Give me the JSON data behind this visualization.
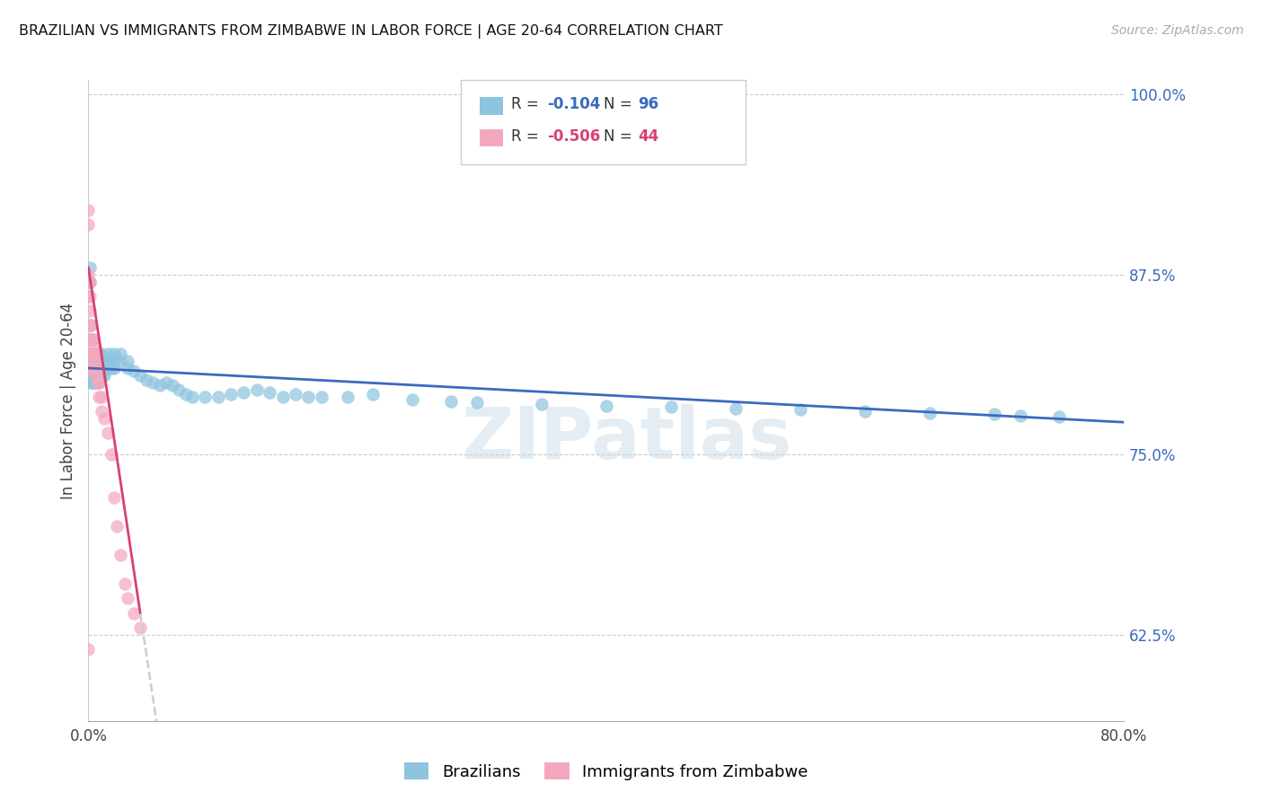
{
  "title": "BRAZILIAN VS IMMIGRANTS FROM ZIMBABWE IN LABOR FORCE | AGE 20-64 CORRELATION CHART",
  "source": "Source: ZipAtlas.com",
  "ylabel": "In Labor Force | Age 20-64",
  "xlim": [
    0.0,
    0.8
  ],
  "ylim": [
    0.565,
    1.01
  ],
  "yticks": [
    0.625,
    0.75,
    0.875,
    1.0
  ],
  "ytick_labels": [
    "62.5%",
    "75.0%",
    "87.5%",
    "100.0%"
  ],
  "xticks": [
    0.0,
    0.1,
    0.2,
    0.3,
    0.4,
    0.5,
    0.6,
    0.7,
    0.8
  ],
  "xtick_labels": [
    "0.0%",
    "",
    "",
    "",
    "",
    "",
    "",
    "",
    "80.0%"
  ],
  "brazil_R": -0.104,
  "brazil_N": 96,
  "zimb_R": -0.506,
  "zimb_N": 44,
  "legend_label_brazil": "Brazilians",
  "legend_label_zimb": "Immigrants from Zimbabwe",
  "blue_color": "#8ec4de",
  "pink_color": "#f4a8be",
  "line_blue": "#3a6abf",
  "line_pink": "#d94070",
  "watermark": "ZIPatlas",
  "brazil_x": [
    0.001,
    0.001,
    0.001,
    0.001,
    0.001,
    0.002,
    0.002,
    0.002,
    0.002,
    0.003,
    0.003,
    0.003,
    0.003,
    0.003,
    0.004,
    0.004,
    0.004,
    0.004,
    0.005,
    0.005,
    0.005,
    0.005,
    0.005,
    0.006,
    0.006,
    0.006,
    0.007,
    0.007,
    0.007,
    0.007,
    0.008,
    0.008,
    0.008,
    0.008,
    0.009,
    0.009,
    0.009,
    0.01,
    0.01,
    0.01,
    0.01,
    0.012,
    0.012,
    0.012,
    0.014,
    0.014,
    0.016,
    0.016,
    0.016,
    0.018,
    0.018,
    0.02,
    0.02,
    0.02,
    0.025,
    0.025,
    0.03,
    0.03,
    0.035,
    0.04,
    0.045,
    0.05,
    0.055,
    0.06,
    0.065,
    0.07,
    0.075,
    0.08,
    0.09,
    0.1,
    0.11,
    0.12,
    0.13,
    0.14,
    0.15,
    0.16,
    0.17,
    0.18,
    0.2,
    0.22,
    0.25,
    0.28,
    0.3,
    0.35,
    0.4,
    0.45,
    0.5,
    0.55,
    0.6,
    0.65,
    0.7,
    0.72,
    0.75
  ],
  "brazil_y": [
    0.87,
    0.88,
    0.84,
    0.83,
    0.82,
    0.83,
    0.82,
    0.81,
    0.8,
    0.82,
    0.815,
    0.81,
    0.805,
    0.8,
    0.82,
    0.815,
    0.81,
    0.8,
    0.82,
    0.815,
    0.81,
    0.805,
    0.8,
    0.815,
    0.81,
    0.805,
    0.82,
    0.815,
    0.81,
    0.805,
    0.82,
    0.815,
    0.81,
    0.8,
    0.815,
    0.81,
    0.805,
    0.82,
    0.815,
    0.81,
    0.805,
    0.815,
    0.81,
    0.805,
    0.815,
    0.81,
    0.82,
    0.815,
    0.81,
    0.815,
    0.81,
    0.82,
    0.815,
    0.81,
    0.82,
    0.815,
    0.815,
    0.81,
    0.808,
    0.805,
    0.802,
    0.8,
    0.798,
    0.8,
    0.798,
    0.795,
    0.792,
    0.79,
    0.79,
    0.79,
    0.792,
    0.793,
    0.795,
    0.793,
    0.79,
    0.792,
    0.79,
    0.79,
    0.79,
    0.792,
    0.788,
    0.787,
    0.786,
    0.785,
    0.784,
    0.783,
    0.782,
    0.781,
    0.78,
    0.779,
    0.778,
    0.777,
    0.776
  ],
  "zimb_x": [
    0.0,
    0.0,
    0.0,
    0.0,
    0.0,
    0.0,
    0.001,
    0.001,
    0.001,
    0.001,
    0.001,
    0.001,
    0.002,
    0.002,
    0.002,
    0.002,
    0.003,
    0.003,
    0.003,
    0.004,
    0.004,
    0.004,
    0.005,
    0.005,
    0.005,
    0.006,
    0.006,
    0.007,
    0.007,
    0.008,
    0.008,
    0.01,
    0.01,
    0.012,
    0.015,
    0.018,
    0.02,
    0.022,
    0.025,
    0.028,
    0.03,
    0.035,
    0.04
  ],
  "zimb_y": [
    0.92,
    0.91,
    0.875,
    0.87,
    0.86,
    0.615,
    0.87,
    0.86,
    0.85,
    0.84,
    0.82,
    0.81,
    0.84,
    0.83,
    0.82,
    0.81,
    0.83,
    0.82,
    0.81,
    0.83,
    0.82,
    0.81,
    0.825,
    0.815,
    0.805,
    0.82,
    0.81,
    0.81,
    0.8,
    0.8,
    0.79,
    0.79,
    0.78,
    0.775,
    0.765,
    0.75,
    0.72,
    0.7,
    0.68,
    0.66,
    0.65,
    0.64,
    0.63
  ],
  "zimb_line_start_x": 0.0,
  "zimb_line_end_solid_x": 0.04,
  "zimb_line_end_dash_x": 0.3,
  "brazil_line_start_x": 0.0,
  "brazil_line_end_x": 0.8,
  "brazil_intercept": 0.81,
  "brazil_slope": -0.047,
  "zimb_intercept": 0.88,
  "zimb_slope": -6.0
}
